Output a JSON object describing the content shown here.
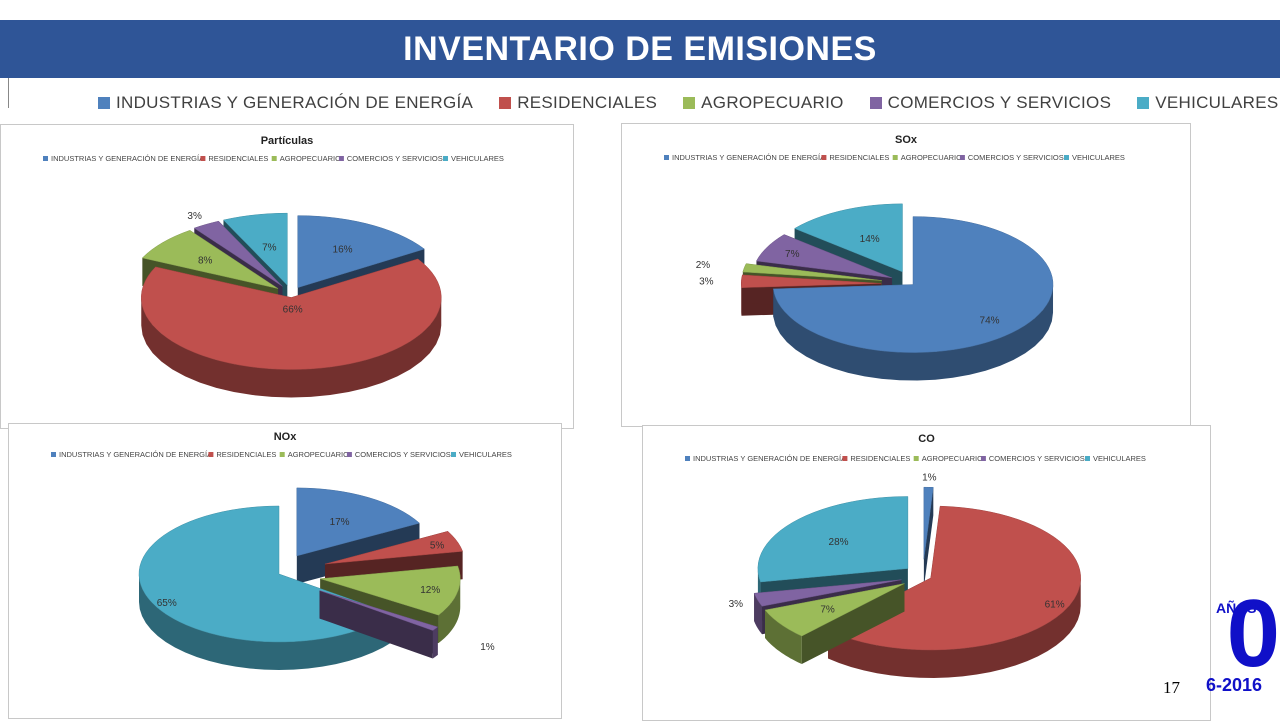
{
  "slide": {
    "title": "INVENTARIO DE EMISIONES",
    "page_number": "17",
    "logo": {
      "anos": "AÑOS",
      "digit": "0",
      "year": "6-2016",
      "color": "#1010c8"
    }
  },
  "legend": {
    "items": [
      {
        "label": "INDUSTRIAS Y GENERACIÓN DE ENERGÍA",
        "color": "#4f81bd"
      },
      {
        "label": "RESIDENCIALES",
        "color": "#c0504d"
      },
      {
        "label": "AGROPECUARIO",
        "color": "#9bbb59"
      },
      {
        "label": "COMERCIOS Y SERVICIOS",
        "color": "#8064a2"
      },
      {
        "label": "VEHICULARES",
        "color": "#4bacc6"
      }
    ]
  },
  "chart_data": [
    {
      "type": "pie",
      "title": "Partículas",
      "categories": [
        "INDUSTRIAS Y GENERACIÓN DE ENERGÍA",
        "RESIDENCIALES",
        "AGROPECUARIO",
        "COMERCIOS Y SERVICIOS",
        "VEHICULARES"
      ],
      "values": [
        16,
        66,
        8,
        3,
        7
      ],
      "labels": [
        "16%",
        "66%",
        "8%",
        "3%",
        "7%"
      ],
      "colors": [
        "#4f81bd",
        "#c0504d",
        "#9bbb59",
        "#8064a2",
        "#4bacc6"
      ],
      "legend_position": "top"
    },
    {
      "type": "pie",
      "title": "SOx",
      "categories": [
        "INDUSTRIAS Y GENERACIÓN DE ENERGÍA",
        "RESIDENCIALES",
        "AGROPECUARIO",
        "COMERCIOS Y SERVICIOS",
        "VEHICULARES"
      ],
      "values": [
        74,
        3,
        2,
        7,
        14
      ],
      "labels": [
        "74%",
        "3%",
        "2%",
        "7%",
        "14%"
      ],
      "colors": [
        "#4f81bd",
        "#c0504d",
        "#9bbb59",
        "#8064a2",
        "#4bacc6"
      ],
      "legend_position": "top"
    },
    {
      "type": "pie",
      "title": "NOx",
      "categories": [
        "INDUSTRIAS Y GENERACIÓN DE ENERGÍA",
        "RESIDENCIALES",
        "AGROPECUARIO",
        "COMERCIOS Y SERVICIOS",
        "VEHICULARES"
      ],
      "values": [
        17,
        5,
        12,
        1,
        65
      ],
      "labels": [
        "17%",
        "5%",
        "12%",
        "1%",
        "65%"
      ],
      "colors": [
        "#4f81bd",
        "#c0504d",
        "#9bbb59",
        "#8064a2",
        "#4bacc6"
      ],
      "legend_position": "top"
    },
    {
      "type": "pie",
      "title": "CO",
      "categories": [
        "INDUSTRIAS Y GENERACIÓN DE ENERGÍA",
        "RESIDENCIALES",
        "AGROPECUARIO",
        "COMERCIOS Y SERVICIOS",
        "VEHICULARES"
      ],
      "values": [
        1,
        61,
        7,
        3,
        28
      ],
      "labels": [
        "1%",
        "61%",
        "7%",
        "3%",
        "28%"
      ],
      "colors": [
        "#4f81bd",
        "#c0504d",
        "#9bbb59",
        "#8064a2",
        "#4bacc6"
      ],
      "legend_position": "top"
    }
  ]
}
